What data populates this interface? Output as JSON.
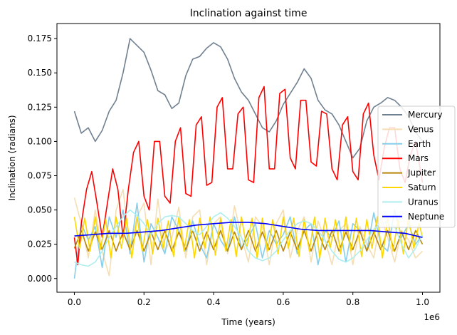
{
  "chart_data": {
    "type": "line",
    "title": "Inclination against time",
    "xlabel": "Time (years)",
    "ylabel": "Inclination (radians)",
    "x_offset_label": "1e6",
    "xlim": [
      -0.05,
      1.05
    ],
    "ylim": [
      -0.01,
      0.186
    ],
    "xticks": [
      0.0,
      0.2,
      0.4,
      0.6,
      0.8,
      1.0
    ],
    "xtick_labels": [
      "0.0",
      "0.2",
      "0.4",
      "0.6",
      "0.8",
      "1.0"
    ],
    "yticks": [
      0.0,
      0.025,
      0.05,
      0.075,
      0.1,
      0.125,
      0.15,
      0.175
    ],
    "ytick_labels": [
      "0.000",
      "0.025",
      "0.050",
      "0.075",
      "0.100",
      "0.125",
      "0.150",
      "0.175"
    ],
    "grid": false,
    "legend_position": "center-right",
    "series": [
      {
        "name": "Mercury",
        "color": "#708090",
        "x": [
          0.0,
          0.02,
          0.04,
          0.06,
          0.08,
          0.1,
          0.12,
          0.14,
          0.16,
          0.18,
          0.2,
          0.22,
          0.24,
          0.26,
          0.28,
          0.3,
          0.32,
          0.34,
          0.36,
          0.38,
          0.4,
          0.42,
          0.44,
          0.46,
          0.48,
          0.5,
          0.52,
          0.54,
          0.56,
          0.58,
          0.6,
          0.62,
          0.64,
          0.66,
          0.68,
          0.7,
          0.72,
          0.74,
          0.76,
          0.78,
          0.8,
          0.82,
          0.84,
          0.86,
          0.88,
          0.9,
          0.92,
          0.94,
          0.96,
          0.98,
          1.0
        ],
        "y": [
          0.122,
          0.106,
          0.11,
          0.1,
          0.108,
          0.122,
          0.13,
          0.15,
          0.175,
          0.17,
          0.165,
          0.152,
          0.137,
          0.134,
          0.124,
          0.128,
          0.148,
          0.16,
          0.162,
          0.168,
          0.172,
          0.169,
          0.16,
          0.146,
          0.136,
          0.13,
          0.12,
          0.11,
          0.107,
          0.115,
          0.127,
          0.135,
          0.143,
          0.153,
          0.146,
          0.13,
          0.123,
          0.12,
          0.112,
          0.1,
          0.088,
          0.095,
          0.115,
          0.125,
          0.128,
          0.132,
          0.13,
          0.125,
          0.118,
          0.107,
          0.1
        ]
      },
      {
        "name": "Venus",
        "color": "#f5deb3",
        "x": [
          0.0,
          0.02,
          0.04,
          0.06,
          0.08,
          0.1,
          0.12,
          0.14,
          0.16,
          0.18,
          0.2,
          0.22,
          0.24,
          0.26,
          0.28,
          0.3,
          0.32,
          0.34,
          0.36,
          0.38,
          0.4,
          0.42,
          0.44,
          0.46,
          0.48,
          0.5,
          0.52,
          0.54,
          0.56,
          0.58,
          0.6,
          0.62,
          0.64,
          0.66,
          0.68,
          0.7,
          0.72,
          0.74,
          0.76,
          0.78,
          0.8,
          0.82,
          0.84,
          0.86,
          0.88,
          0.9,
          0.92,
          0.94,
          0.96,
          0.98,
          1.0
        ],
        "y": [
          0.059,
          0.04,
          0.015,
          0.05,
          0.02,
          0.002,
          0.05,
          0.065,
          0.02,
          0.045,
          0.055,
          0.01,
          0.058,
          0.02,
          0.03,
          0.052,
          0.015,
          0.045,
          0.05,
          0.01,
          0.04,
          0.045,
          0.018,
          0.053,
          0.03,
          0.012,
          0.045,
          0.038,
          0.01,
          0.04,
          0.05,
          0.015,
          0.035,
          0.045,
          0.012,
          0.042,
          0.028,
          0.01,
          0.035,
          0.04,
          0.01,
          0.038,
          0.025,
          0.015,
          0.045,
          0.03,
          0.012,
          0.035,
          0.028,
          0.015,
          0.02
        ]
      },
      {
        "name": "Earth",
        "color": "#87ceeb",
        "x": [
          0.0,
          0.02,
          0.04,
          0.06,
          0.08,
          0.1,
          0.12,
          0.14,
          0.16,
          0.18,
          0.2,
          0.22,
          0.24,
          0.26,
          0.28,
          0.3,
          0.32,
          0.34,
          0.36,
          0.38,
          0.4,
          0.42,
          0.44,
          0.46,
          0.48,
          0.5,
          0.52,
          0.54,
          0.56,
          0.58,
          0.6,
          0.62,
          0.64,
          0.66,
          0.68,
          0.7,
          0.72,
          0.74,
          0.76,
          0.78,
          0.8,
          0.82,
          0.84,
          0.86,
          0.88,
          0.9,
          0.92,
          0.94,
          0.96,
          0.98,
          1.0
        ],
        "y": [
          0.0,
          0.04,
          0.028,
          0.038,
          0.008,
          0.045,
          0.03,
          0.05,
          0.018,
          0.055,
          0.012,
          0.04,
          0.03,
          0.018,
          0.045,
          0.035,
          0.02,
          0.042,
          0.025,
          0.015,
          0.04,
          0.028,
          0.02,
          0.045,
          0.022,
          0.03,
          0.04,
          0.015,
          0.035,
          0.025,
          0.032,
          0.045,
          0.018,
          0.035,
          0.04,
          0.01,
          0.035,
          0.03,
          0.042,
          0.012,
          0.04,
          0.035,
          0.02,
          0.048,
          0.025,
          0.02,
          0.05,
          0.03,
          0.04,
          0.025,
          0.032
        ]
      },
      {
        "name": "Mars",
        "color": "#ff0000",
        "x": [
          0.0,
          0.01,
          0.02,
          0.035,
          0.05,
          0.065,
          0.08,
          0.095,
          0.11,
          0.125,
          0.14,
          0.155,
          0.17,
          0.185,
          0.2,
          0.215,
          0.23,
          0.245,
          0.26,
          0.275,
          0.29,
          0.305,
          0.32,
          0.335,
          0.35,
          0.365,
          0.38,
          0.395,
          0.41,
          0.425,
          0.44,
          0.455,
          0.47,
          0.485,
          0.5,
          0.515,
          0.53,
          0.545,
          0.56,
          0.575,
          0.59,
          0.605,
          0.62,
          0.635,
          0.65,
          0.665,
          0.68,
          0.695,
          0.71,
          0.725,
          0.74,
          0.755,
          0.77,
          0.785,
          0.8,
          0.815,
          0.83,
          0.845,
          0.86,
          0.875,
          0.89,
          0.905,
          0.92,
          0.935,
          0.95,
          0.965,
          0.98,
          1.0
        ],
        "y": [
          0.03,
          0.01,
          0.04,
          0.065,
          0.078,
          0.055,
          0.03,
          0.055,
          0.08,
          0.065,
          0.03,
          0.065,
          0.092,
          0.1,
          0.06,
          0.05,
          0.1,
          0.1,
          0.06,
          0.055,
          0.1,
          0.11,
          0.062,
          0.06,
          0.112,
          0.118,
          0.068,
          0.07,
          0.125,
          0.132,
          0.08,
          0.08,
          0.12,
          0.125,
          0.072,
          0.07,
          0.132,
          0.14,
          0.08,
          0.08,
          0.135,
          0.138,
          0.088,
          0.08,
          0.13,
          0.13,
          0.085,
          0.082,
          0.122,
          0.12,
          0.08,
          0.072,
          0.112,
          0.118,
          0.078,
          0.072,
          0.12,
          0.128,
          0.09,
          0.072,
          0.095,
          0.11,
          0.11,
          0.08,
          0.07,
          0.09,
          0.1,
          0.07
        ]
      },
      {
        "name": "Jupiter",
        "color": "#b8860b",
        "x": [
          0.0,
          0.02,
          0.04,
          0.06,
          0.08,
          0.1,
          0.12,
          0.14,
          0.16,
          0.18,
          0.2,
          0.22,
          0.24,
          0.26,
          0.28,
          0.3,
          0.32,
          0.34,
          0.36,
          0.38,
          0.4,
          0.42,
          0.44,
          0.46,
          0.48,
          0.5,
          0.52,
          0.54,
          0.56,
          0.58,
          0.6,
          0.62,
          0.64,
          0.66,
          0.68,
          0.7,
          0.72,
          0.74,
          0.76,
          0.78,
          0.8,
          0.82,
          0.84,
          0.86,
          0.88,
          0.9,
          0.92,
          0.94,
          0.96,
          0.98,
          1.0
        ],
        "y": [
          0.022,
          0.035,
          0.02,
          0.034,
          0.021,
          0.035,
          0.02,
          0.034,
          0.021,
          0.035,
          0.02,
          0.034,
          0.021,
          0.035,
          0.02,
          0.034,
          0.021,
          0.035,
          0.02,
          0.034,
          0.021,
          0.035,
          0.02,
          0.034,
          0.021,
          0.035,
          0.02,
          0.034,
          0.021,
          0.035,
          0.02,
          0.034,
          0.021,
          0.035,
          0.02,
          0.034,
          0.021,
          0.035,
          0.02,
          0.034,
          0.021,
          0.035,
          0.02,
          0.034,
          0.021,
          0.035,
          0.02,
          0.034,
          0.021,
          0.035,
          0.025
        ]
      },
      {
        "name": "Saturn",
        "color": "#ffd700",
        "x": [
          0.0,
          0.015,
          0.03,
          0.045,
          0.06,
          0.075,
          0.09,
          0.105,
          0.12,
          0.135,
          0.15,
          0.165,
          0.18,
          0.195,
          0.21,
          0.225,
          0.24,
          0.255,
          0.27,
          0.285,
          0.3,
          0.315,
          0.33,
          0.345,
          0.36,
          0.375,
          0.39,
          0.405,
          0.42,
          0.435,
          0.45,
          0.465,
          0.48,
          0.495,
          0.51,
          0.525,
          0.54,
          0.555,
          0.57,
          0.585,
          0.6,
          0.615,
          0.63,
          0.645,
          0.66,
          0.675,
          0.69,
          0.705,
          0.72,
          0.735,
          0.75,
          0.765,
          0.78,
          0.795,
          0.81,
          0.825,
          0.84,
          0.855,
          0.87,
          0.885,
          0.9,
          0.915,
          0.93,
          0.945,
          0.96,
          0.975,
          0.99,
          1.0
        ],
        "y": [
          0.045,
          0.022,
          0.044,
          0.02,
          0.045,
          0.021,
          0.043,
          0.015,
          0.045,
          0.022,
          0.044,
          0.015,
          0.045,
          0.02,
          0.043,
          0.018,
          0.044,
          0.022,
          0.042,
          0.016,
          0.045,
          0.02,
          0.043,
          0.015,
          0.044,
          0.022,
          0.045,
          0.017,
          0.044,
          0.02,
          0.043,
          0.016,
          0.045,
          0.022,
          0.044,
          0.015,
          0.044,
          0.02,
          0.043,
          0.018,
          0.045,
          0.022,
          0.044,
          0.016,
          0.043,
          0.02,
          0.045,
          0.015,
          0.044,
          0.022,
          0.043,
          0.018,
          0.045,
          0.02,
          0.044,
          0.016,
          0.043,
          0.022,
          0.045,
          0.015,
          0.044,
          0.02,
          0.043,
          0.018,
          0.045,
          0.022,
          0.04,
          0.03
        ]
      },
      {
        "name": "Uranus",
        "color": "#afeeee",
        "x": [
          0.0,
          0.02,
          0.04,
          0.06,
          0.08,
          0.1,
          0.12,
          0.14,
          0.16,
          0.18,
          0.2,
          0.22,
          0.24,
          0.26,
          0.28,
          0.3,
          0.32,
          0.34,
          0.36,
          0.38,
          0.4,
          0.42,
          0.44,
          0.46,
          0.48,
          0.5,
          0.52,
          0.54,
          0.56,
          0.58,
          0.6,
          0.62,
          0.64,
          0.66,
          0.68,
          0.7,
          0.72,
          0.74,
          0.76,
          0.78,
          0.8,
          0.82,
          0.84,
          0.86,
          0.88,
          0.9,
          0.92,
          0.94,
          0.96,
          0.98,
          1.0
        ],
        "y": [
          0.012,
          0.01,
          0.009,
          0.012,
          0.02,
          0.03,
          0.038,
          0.045,
          0.05,
          0.046,
          0.04,
          0.032,
          0.04,
          0.045,
          0.046,
          0.045,
          0.04,
          0.035,
          0.032,
          0.038,
          0.045,
          0.048,
          0.044,
          0.038,
          0.03,
          0.02,
          0.015,
          0.013,
          0.015,
          0.02,
          0.028,
          0.035,
          0.04,
          0.042,
          0.04,
          0.035,
          0.028,
          0.02,
          0.014,
          0.012,
          0.015,
          0.02,
          0.028,
          0.036,
          0.04,
          0.041,
          0.038,
          0.025,
          0.015,
          0.022,
          0.032
        ]
      },
      {
        "name": "Neptune",
        "color": "#0000ff",
        "x": [
          0.0,
          0.05,
          0.1,
          0.15,
          0.2,
          0.25,
          0.3,
          0.35,
          0.4,
          0.45,
          0.5,
          0.55,
          0.6,
          0.65,
          0.7,
          0.75,
          0.8,
          0.85,
          0.9,
          0.95,
          1.0
        ],
        "y": [
          0.031,
          0.032,
          0.033,
          0.033,
          0.034,
          0.035,
          0.037,
          0.039,
          0.04,
          0.041,
          0.041,
          0.04,
          0.038,
          0.036,
          0.035,
          0.035,
          0.035,
          0.035,
          0.034,
          0.033,
          0.03
        ]
      }
    ]
  }
}
